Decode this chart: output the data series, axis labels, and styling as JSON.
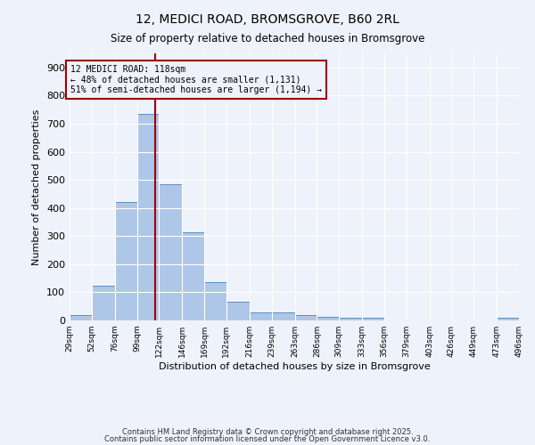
{
  "title": "12, MEDICI ROAD, BROMSGROVE, B60 2RL",
  "subtitle": "Size of property relative to detached houses in Bromsgrove",
  "xlabel": "Distribution of detached houses by size in Bromsgrove",
  "ylabel": "Number of detached properties",
  "footnote1": "Contains HM Land Registry data © Crown copyright and database right 2025.",
  "footnote2": "Contains public sector information licensed under the Open Government Licence v3.0.",
  "bin_edges": [
    29,
    52,
    76,
    99,
    122,
    146,
    169,
    192,
    216,
    239,
    263,
    286,
    309,
    333,
    356,
    379,
    403,
    426,
    449,
    473,
    496
  ],
  "bar_heights": [
    20,
    125,
    420,
    735,
    485,
    315,
    135,
    68,
    30,
    30,
    20,
    12,
    8,
    10,
    0,
    0,
    0,
    0,
    0,
    8
  ],
  "bar_color": "#aec6e8",
  "bar_edge_color": "#5a8fc2",
  "property_size": 118,
  "vline_color": "#a00000",
  "annotation_title": "12 MEDICI ROAD: 118sqm",
  "annotation_line1": "← 48% of detached houses are smaller (1,131)",
  "annotation_line2": "51% of semi-detached houses are larger (1,194) →",
  "background_color": "#eef2fa",
  "ylim": [
    0,
    950
  ],
  "yticks": [
    0,
    100,
    200,
    300,
    400,
    500,
    600,
    700,
    800,
    900
  ]
}
